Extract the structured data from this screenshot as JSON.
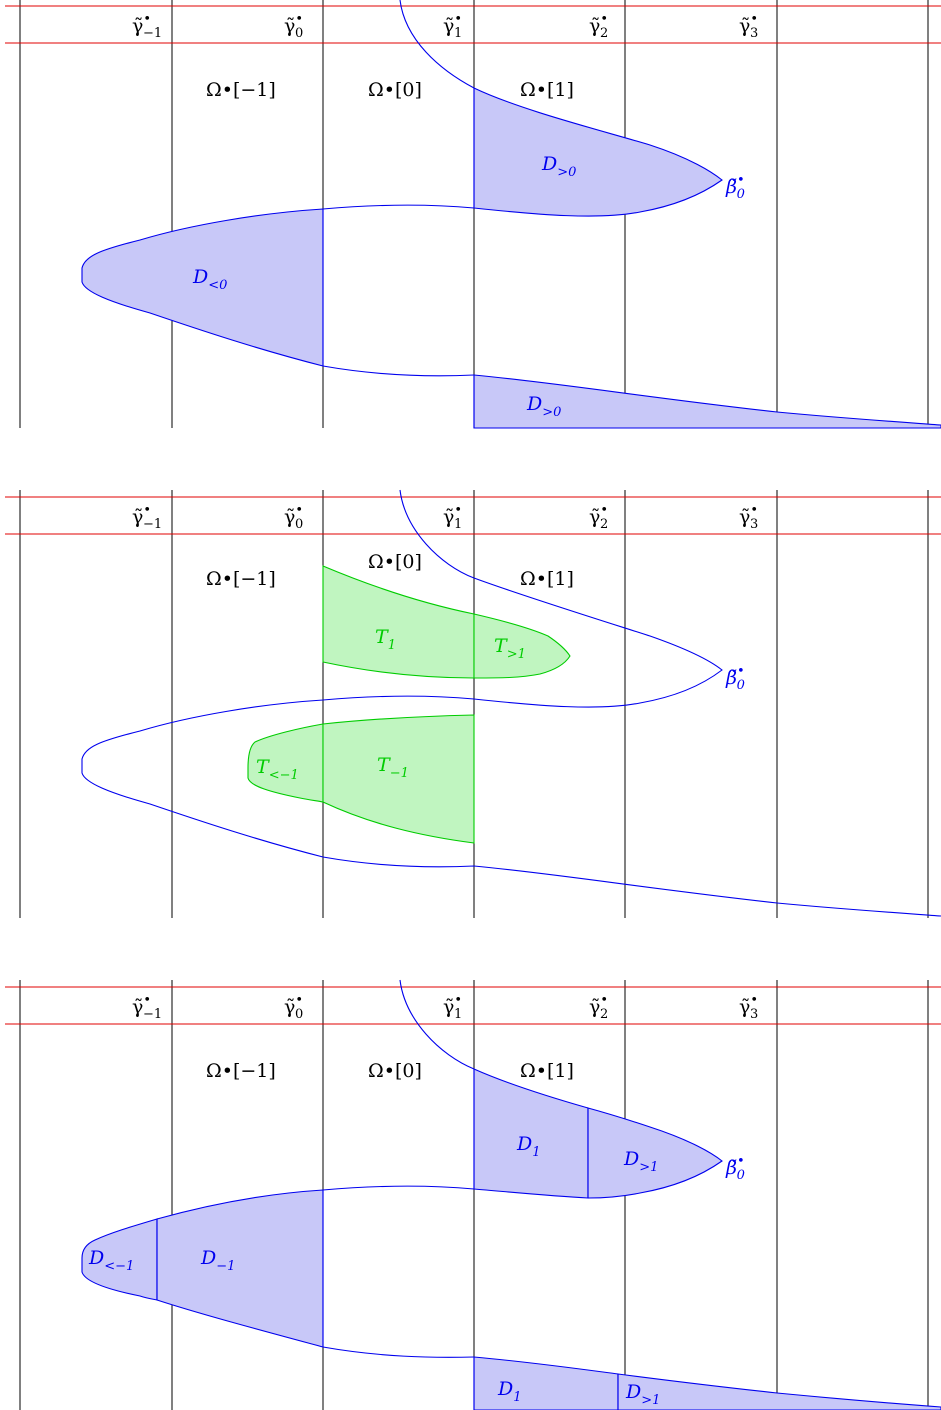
{
  "gamma_labels": [
    {
      "base": "γ̃",
      "sub": "−1"
    },
    {
      "base": "γ̃",
      "sub": "0"
    },
    {
      "base": "γ̃",
      "sub": "1"
    },
    {
      "base": "γ̃",
      "sub": "2"
    },
    {
      "base": "γ̃",
      "sub": "3"
    }
  ],
  "sup_mark": "•",
  "omega_labels": [
    "Ω•[−1]",
    "Ω•[0]",
    "Ω•[1]"
  ],
  "beta_label": {
    "base": "β̃",
    "sub": "0"
  },
  "panel1": {
    "D_pos_top": {
      "base": "D",
      "sub": ">0"
    },
    "D_neg": {
      "base": "D",
      "sub": "<0"
    },
    "D_pos_bottom": {
      "base": "D",
      "sub": ">0"
    }
  },
  "panel2": {
    "T_1": {
      "base": "T",
      "sub": "1"
    },
    "T_gt1": {
      "base": "T",
      "sub": ">1"
    },
    "T_lt_neg1": {
      "base": "T",
      "sub": "<−1"
    },
    "T_neg1": {
      "base": "T",
      "sub": "−1"
    }
  },
  "panel3": {
    "D_1_top": {
      "base": "D",
      "sub": "1"
    },
    "D_gt1_top": {
      "base": "D",
      "sub": ">1"
    },
    "D_lt_neg1": {
      "base": "D",
      "sub": "<−1"
    },
    "D_neg1": {
      "base": "D",
      "sub": "−1"
    },
    "D_1_bottom": {
      "base": "D",
      "sub": "1"
    },
    "D_gt1_bottom": {
      "base": "D",
      "sub": ">1"
    }
  },
  "colors": {
    "grid": "#000000",
    "red_lines": "#e00000",
    "blue": "#0000ee",
    "blue_fill": "#c8c8f8",
    "green": "#00cc00",
    "green_fill": "#c0f5c0"
  }
}
